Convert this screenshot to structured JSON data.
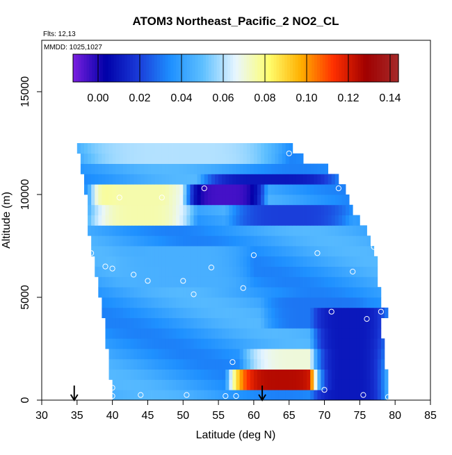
{
  "chart_data": {
    "type": "heatmap",
    "title": "ATOM3 Northeast_Pacific_2 NO2_CL",
    "flights_note": "Flts: 12,13",
    "date_note": "MMDD: 1025,1027",
    "xlabel": "Latitude (deg N)",
    "ylabel": "Altitude (m)",
    "xlim": [
      30,
      85
    ],
    "ylim": [
      0,
      17500
    ],
    "x_ticks": [
      "30",
      "35",
      "40",
      "45",
      "50",
      "55",
      "60",
      "65",
      "70",
      "75",
      "80",
      "85"
    ],
    "y_ticks": [
      "0",
      "5000",
      "10000",
      "15000"
    ],
    "y_tick_values": [
      0,
      5000,
      10000,
      15000
    ],
    "colorbar": {
      "range": [
        -0.012,
        0.144
      ],
      "tick_labels": [
        "0.00",
        "0.02",
        "0.04",
        "0.06",
        "0.08",
        "0.10",
        "0.12",
        "0.14"
      ],
      "tick_values": [
        0,
        0.02,
        0.04,
        0.06,
        0.08,
        0.1,
        0.12,
        0.14
      ],
      "color_stops": [
        "#7b1fe0",
        "#0000a8",
        "#1a3ad8",
        "#1e90ff",
        "#5fc0ff",
        "#e8f6ff",
        "#ffff70",
        "#ffb000",
        "#ff3000",
        "#a00000",
        "#a52a2a"
      ]
    },
    "altitude_bins_m": [
      0,
      500,
      1000,
      1500,
      2000,
      2500,
      3000,
      3500,
      4000,
      4500,
      5000,
      5500,
      6000,
      6500,
      7000,
      7500,
      8000,
      8500,
      9000,
      9500,
      10000,
      10500,
      11000,
      11500,
      12000,
      12500
    ],
    "row_lat_extent": [
      [
        40,
        79
      ],
      [
        40,
        79
      ],
      [
        39.5,
        79
      ],
      [
        39.5,
        78.5
      ],
      [
        39.5,
        78.5
      ],
      [
        39,
        78.5
      ],
      [
        39,
        78
      ],
      [
        39,
        78
      ],
      [
        38.5,
        79
      ],
      [
        38.5,
        78
      ],
      [
        38,
        78
      ],
      [
        38,
        77.5
      ],
      [
        37.5,
        77.5
      ],
      [
        37.5,
        77.5
      ],
      [
        37,
        77
      ],
      [
        37,
        76.5
      ],
      [
        36.5,
        76
      ],
      [
        36.5,
        75
      ],
      [
        36.5,
        74
      ],
      [
        36.5,
        73.5
      ],
      [
        36,
        73
      ],
      [
        36,
        72
      ],
      [
        35.5,
        70.5
      ],
      [
        35.5,
        67
      ],
      [
        35,
        65.5
      ]
    ],
    "color_features": [
      {
        "lat": [
          56,
          72
        ],
        "alt": [
          500,
          1500
        ],
        "value": 0.125
      },
      {
        "lat": [
          58,
          76
        ],
        "alt": [
          1500,
          2500
        ],
        "value": 0.07
      },
      {
        "lat": [
          37,
          48
        ],
        "alt": [
          9500,
          10500
        ],
        "value": 0.095
      },
      {
        "lat": [
          36,
          52
        ],
        "alt": [
          8500,
          10500
        ],
        "value": 0.075
      },
      {
        "lat": [
          50,
          62
        ],
        "alt": [
          9500,
          10500
        ],
        "value": -0.005
      },
      {
        "lat": [
          52,
          72
        ],
        "alt": [
          10500,
          11000
        ],
        "value": 0.01
      },
      {
        "lat": [
          56,
          74
        ],
        "alt": [
          8500,
          9500
        ],
        "value": 0.02
      },
      {
        "lat": [
          61,
          76
        ],
        "alt": [
          3500,
          5000
        ],
        "value": 0.03
      },
      {
        "lat": [
          68,
          79
        ],
        "alt": [
          0,
          4500
        ],
        "value": 0.01
      },
      {
        "lat": [
          40,
          60
        ],
        "alt": [
          5500,
          7500
        ],
        "value": 0.045
      },
      {
        "lat": [
          35,
          65
        ],
        "alt": [
          11500,
          12500
        ],
        "value": 0.06
      }
    ],
    "sample_points": [
      {
        "lat": 65,
        "alt": 12000
      },
      {
        "lat": 53,
        "alt": 10300
      },
      {
        "lat": 72,
        "alt": 10300
      },
      {
        "lat": 41,
        "alt": 9850
      },
      {
        "lat": 47,
        "alt": 9850
      },
      {
        "lat": 37,
        "alt": 7150
      },
      {
        "lat": 60,
        "alt": 7050
      },
      {
        "lat": 69,
        "alt": 7150
      },
      {
        "lat": 77,
        "alt": 7450
      },
      {
        "lat": 39,
        "alt": 6500
      },
      {
        "lat": 40,
        "alt": 6400
      },
      {
        "lat": 43,
        "alt": 6100
      },
      {
        "lat": 45,
        "alt": 5800
      },
      {
        "lat": 50,
        "alt": 5800
      },
      {
        "lat": 54,
        "alt": 6450
      },
      {
        "lat": 74,
        "alt": 6250
      },
      {
        "lat": 51.5,
        "alt": 5150
      },
      {
        "lat": 58.5,
        "alt": 5450
      },
      {
        "lat": 38,
        "alt": 4550
      },
      {
        "lat": 71,
        "alt": 4300
      },
      {
        "lat": 76,
        "alt": 3950
      },
      {
        "lat": 78,
        "alt": 4300
      },
      {
        "lat": 79,
        "alt": 3850
      },
      {
        "lat": 57,
        "alt": 1850
      },
      {
        "lat": 40,
        "alt": 600
      },
      {
        "lat": 70,
        "alt": 500
      },
      {
        "lat": 40,
        "alt": 200
      },
      {
        "lat": 44,
        "alt": 250
      },
      {
        "lat": 50.5,
        "alt": 250
      },
      {
        "lat": 56,
        "alt": 200
      },
      {
        "lat": 57.5,
        "alt": 200
      },
      {
        "lat": 75.5,
        "alt": 250
      },
      {
        "lat": 79,
        "alt": 150
      }
    ],
    "arrows_lat": [
      34.6,
      61.2
    ]
  }
}
